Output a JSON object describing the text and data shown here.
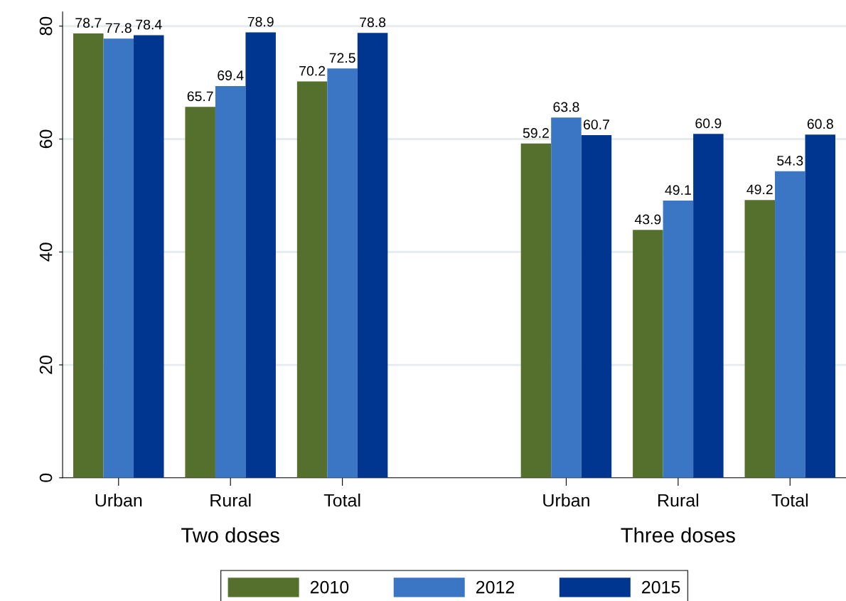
{
  "chart_data": {
    "type": "bar",
    "categories": [
      "Urban",
      "Rural",
      "Total",
      null,
      "Urban",
      "Rural",
      "Total"
    ],
    "series": [
      {
        "name": "2010",
        "color": "#556f2d",
        "values": [
          78.7,
          65.7,
          70.2,
          null,
          59.2,
          43.9,
          49.2
        ]
      },
      {
        "name": "2012",
        "color": "#3b76c4",
        "values": [
          77.8,
          69.4,
          72.5,
          null,
          63.8,
          49.1,
          54.3
        ]
      },
      {
        "name": "2015",
        "color": "#00368f",
        "values": [
          78.4,
          78.9,
          78.8,
          null,
          60.7,
          60.9,
          60.8
        ]
      }
    ],
    "annotations": [
      "Two doses",
      "Three doses"
    ],
    "ylim": [
      0,
      82.5
    ],
    "yticks": [
      0,
      20,
      40,
      60,
      80
    ],
    "grid": "y",
    "legend": "bottom",
    "data_labels": true
  }
}
